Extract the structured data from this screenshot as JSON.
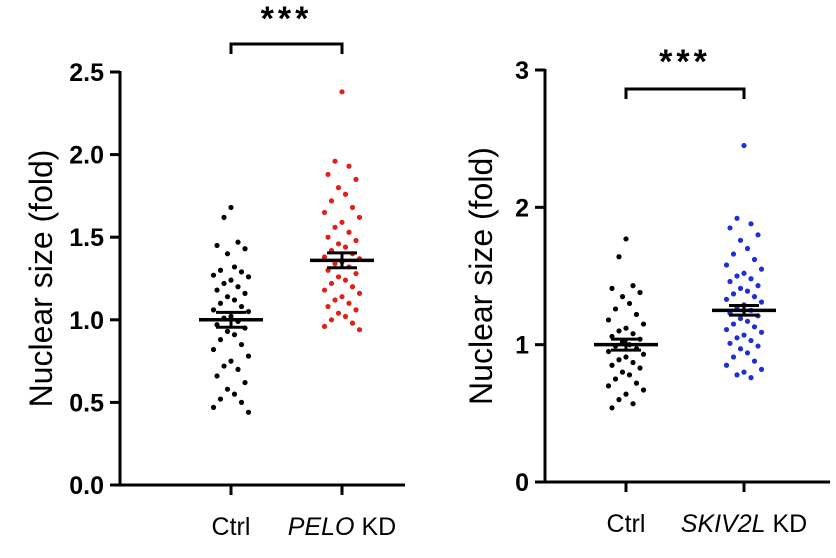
{
  "chart_data": [
    {
      "type": "scatter",
      "ylabel": "Nuclear size (fold)",
      "ylim": [
        0,
        2.5
      ],
      "yticks": [
        "0.0",
        "0.5",
        "1.0",
        "1.5",
        "2.0",
        "2.5"
      ],
      "categories": [
        {
          "pre": "Ctrl",
          "italic": "",
          "post": ""
        },
        {
          "pre": "",
          "italic": "PELO",
          "post": " KD"
        }
      ],
      "series": [
        {
          "color": "#000000",
          "mean": 1.0,
          "sem": 0.045,
          "values": [
            1.68,
            1.62,
            1.47,
            1.45,
            1.43,
            1.4,
            1.32,
            1.3,
            1.29,
            1.27,
            1.26,
            1.24,
            1.22,
            1.2,
            1.18,
            1.16,
            1.14,
            1.12,
            1.1,
            1.08,
            1.06,
            1.05,
            1.02,
            1.01,
            0.99,
            0.97,
            0.95,
            0.93,
            0.91,
            0.88,
            0.85,
            0.82,
            0.78,
            0.75,
            0.72,
            0.7,
            0.66,
            0.62,
            0.58,
            0.55,
            0.52,
            0.5,
            0.47,
            0.44
          ]
        },
        {
          "color": "#e0201b",
          "mean": 1.36,
          "sem": 0.045,
          "values": [
            2.38,
            1.96,
            1.93,
            1.88,
            1.85,
            1.8,
            1.76,
            1.72,
            1.68,
            1.65,
            1.62,
            1.59,
            1.56,
            1.53,
            1.5,
            1.48,
            1.46,
            1.44,
            1.42,
            1.4,
            1.38,
            1.37,
            1.35,
            1.34,
            1.32,
            1.3,
            1.28,
            1.26,
            1.24,
            1.22,
            1.2,
            1.18,
            1.16,
            1.14,
            1.12,
            1.1,
            1.08,
            1.06,
            1.04,
            1.02,
            1.0,
            0.98,
            0.96,
            0.94
          ]
        }
      ],
      "significance": "***"
    },
    {
      "type": "scatter",
      "ylabel": "Nuclear size (fold)",
      "ylim": [
        0,
        3
      ],
      "yticks": [
        "0",
        "1",
        "2",
        "3"
      ],
      "categories": [
        {
          "pre": "Ctrl",
          "italic": "",
          "post": ""
        },
        {
          "pre": "",
          "italic": "SKIV2L",
          "post": " KD"
        }
      ],
      "series": [
        {
          "color": "#000000",
          "mean": 1.0,
          "sem": 0.04,
          "values": [
            1.77,
            1.64,
            1.43,
            1.41,
            1.38,
            1.35,
            1.3,
            1.26,
            1.22,
            1.18,
            1.15,
            1.12,
            1.1,
            1.08,
            1.06,
            1.04,
            1.02,
            1.0,
            0.99,
            0.97,
            0.95,
            0.93,
            0.91,
            0.89,
            0.87,
            0.85,
            0.83,
            0.8,
            0.78,
            0.75,
            0.72,
            0.7,
            0.67,
            0.64,
            0.6,
            0.57,
            0.54
          ]
        },
        {
          "color": "#1d2fd6",
          "mean": 1.25,
          "sem": 0.035,
          "values": [
            2.45,
            1.92,
            1.88,
            1.85,
            1.8,
            1.76,
            1.7,
            1.66,
            1.62,
            1.58,
            1.55,
            1.52,
            1.5,
            1.48,
            1.46,
            1.43,
            1.41,
            1.39,
            1.37,
            1.35,
            1.33,
            1.31,
            1.29,
            1.27,
            1.25,
            1.23,
            1.21,
            1.19,
            1.17,
            1.15,
            1.13,
            1.11,
            1.09,
            1.07,
            1.05,
            1.03,
            1.01,
            0.99,
            0.97,
            0.94,
            0.91,
            0.88,
            0.85,
            0.82,
            0.8,
            0.78,
            0.76
          ]
        }
      ],
      "significance": "***"
    }
  ]
}
